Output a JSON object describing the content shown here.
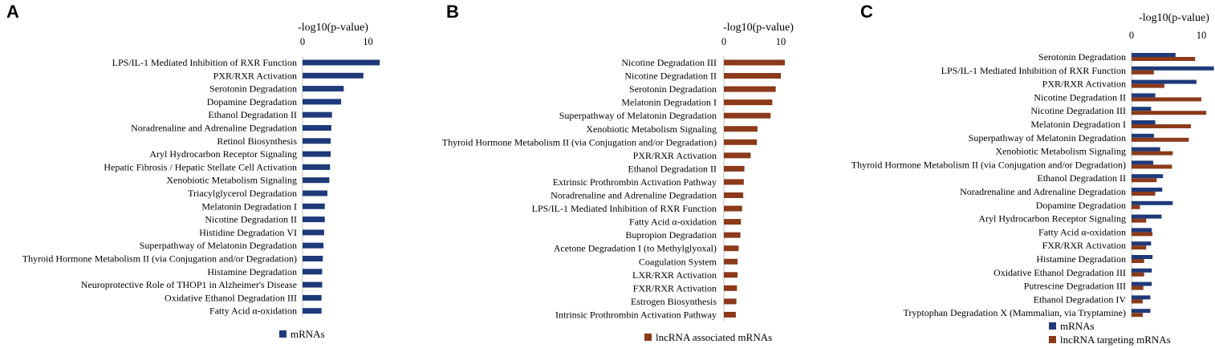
{
  "colors": {
    "mrnas": "#1f3a7a",
    "lncrna": "#8b3a1a"
  },
  "chart_data": [
    {
      "type": "bar",
      "orientation": "horizontal",
      "panel": "A",
      "xlabel": "-log10(p-value)",
      "xlim": [
        0,
        12
      ],
      "xticks": [
        0,
        10
      ],
      "categories": [
        "LPS/IL-1 Mediated Inhibition of RXR Function",
        "PXR/RXR Activation",
        "Serotonin Degradation",
        "Dopamine Degradation",
        "Ethanol Degradation II",
        "Noradrenaline and Adrenaline Degradation",
        "Retinol Biosynthesis",
        "Aryl Hydrocarbon Receptor Signaling",
        "Hepatic Fibrosis / Hepatic Stellate Cell Activation",
        "Xenobiotic Metabolism Signaling",
        "Triacylglycerol Degradation",
        "Melatonin Degradation I",
        "Nicotine Degradation II",
        "Histidine Degradation VI",
        "Superpathway of Melatonin Degradation",
        "Thyroid Hormone Metabolism II (via Conjugation and/or Degradation)",
        "Histamine Degradation",
        "Neuroprotective Role of THOP1 in Alzheimer's Disease",
        "Oxidative Ethanol Degradation III",
        "Fatty Acid α-oxidation"
      ],
      "series": [
        {
          "name": "mRNAs",
          "color": "#1f3a7a",
          "values": [
            11.8,
            9.3,
            6.3,
            5.9,
            4.5,
            4.4,
            4.3,
            4.3,
            4.2,
            4.1,
            3.8,
            3.4,
            3.4,
            3.3,
            3.2,
            3.1,
            3.0,
            3.0,
            2.9,
            2.9
          ]
        }
      ]
    },
    {
      "type": "bar",
      "orientation": "horizontal",
      "panel": "B",
      "xlabel": "-log10(p-value)",
      "xlim": [
        0,
        12
      ],
      "xticks": [
        0,
        10
      ],
      "categories": [
        "Nicotine Degradation III",
        "Nicotine Degradation II",
        "Serotonin Degradation",
        "Melatonin Degradation I",
        "Superpathway of Melatonin Degradation",
        "Xenobiotic Metabolism Signaling",
        "Thyroid Hormone Metabolism II (via Conjugation and/or Degradation)",
        "PXR/RXR Activation",
        "Ethanol Degradation II",
        "Extrinsic Prothrombin Activation Pathway",
        "Noradrenaline and Adrenaline Degradation",
        "LPS/IL-1 Mediated Inhibition of RXR Function",
        "Fatty Acid α-oxidation",
        "Bupropion Degradation",
        "Acetone Degradation I (to Methylglyoxal)",
        "Coagulation System",
        "LXR/RXR Activation",
        "FXR/RXR Activation",
        "Estrogen Biosynthesis",
        "Intrinsic Prothrombin Activation Pathway"
      ],
      "series": [
        {
          "name": "lncRNA associated mRNAs",
          "color": "#8b3a1a",
          "values": [
            10.7,
            10.0,
            9.1,
            8.5,
            8.2,
            5.9,
            5.8,
            4.7,
            3.6,
            3.5,
            3.4,
            3.2,
            3.0,
            2.9,
            2.6,
            2.4,
            2.4,
            2.3,
            2.2,
            2.1
          ]
        }
      ]
    },
    {
      "type": "bar",
      "orientation": "horizontal",
      "panel": "C",
      "xlabel": "-log10(p-value)",
      "xlim": [
        0,
        12
      ],
      "xticks": [
        0,
        10
      ],
      "categories": [
        "Serotonin Degradation",
        "LPS/IL-1 Mediated Inhibition of RXR Function",
        "PXR/RXR Activation",
        "Nicotine Degradation II",
        "Nicotine Degradation III",
        "Melatonin Degradation I",
        "Superpathway of Melatonin Degradation",
        "Xenobiotic Metabolism Signaling",
        "Thyroid Hormone Metabolism II (via Conjugation and/or Degradation)",
        "Ethanol Degradation II",
        "Noradrenaline and Adrenaline Degradation",
        "Dopamine Degradation",
        "Aryl Hydrocarbon Receptor Signaling",
        "Fatty Acid α-oxidation",
        "FXR/RXR Activation",
        "Histamine Degradation",
        "Oxidative Ethanol Degradation III",
        "Putrescine Degradation III",
        "Ethanol Degradation IV",
        "Tryptophan Degradation X (Mammalian, via Tryptamine)"
      ],
      "series": [
        {
          "name": "mRNAs",
          "color": "#1f3a7a",
          "values": [
            6.3,
            11.8,
            9.3,
            3.4,
            2.8,
            3.4,
            3.2,
            4.1,
            3.1,
            4.5,
            4.4,
            5.9,
            4.3,
            2.9,
            2.8,
            3.0,
            2.9,
            2.9,
            2.7,
            2.7
          ]
        },
        {
          "name": "lncRNA targeting mRNAs",
          "color": "#8b3a1a",
          "values": [
            9.1,
            3.2,
            4.7,
            10.0,
            10.7,
            8.5,
            8.2,
            5.9,
            5.8,
            3.6,
            3.4,
            1.2,
            2.1,
            3.0,
            2.1,
            1.8,
            1.8,
            1.7,
            1.6,
            1.6
          ]
        }
      ]
    }
  ]
}
